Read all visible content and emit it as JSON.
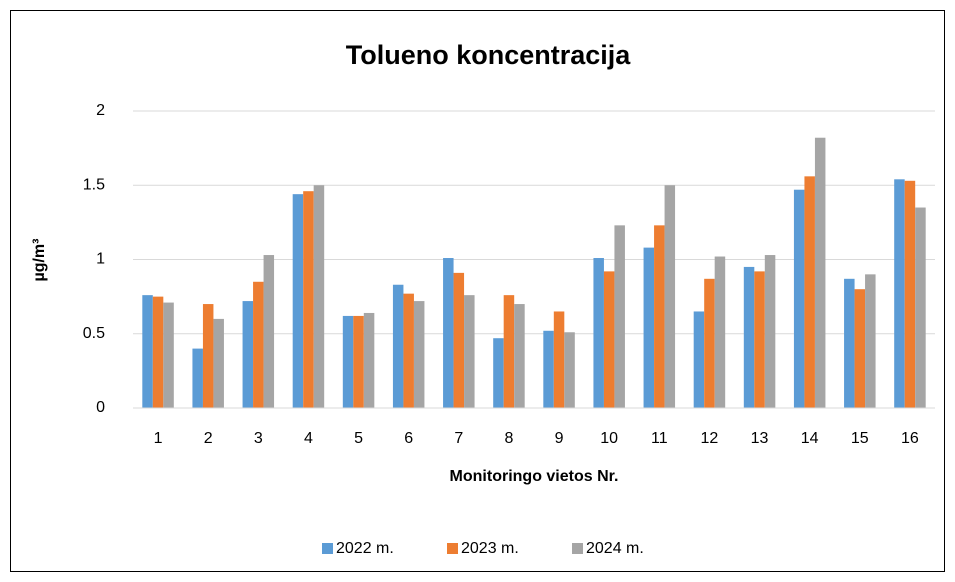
{
  "chart_data": {
    "type": "bar",
    "title": "Tolueno koncentracija",
    "x_label": "Monitoringo vietos Nr.",
    "y_label": "µg/m³",
    "categories": [
      "1",
      "2",
      "3",
      "4",
      "5",
      "6",
      "7",
      "8",
      "9",
      "10",
      "11",
      "12",
      "13",
      "14",
      "15",
      "16"
    ],
    "series": [
      {
        "name": "2022 m.",
        "color": "#5b9bd5",
        "values": [
          0.76,
          0.4,
          0.72,
          1.44,
          0.62,
          0.83,
          1.01,
          0.47,
          0.52,
          1.01,
          1.08,
          0.65,
          0.95,
          1.47,
          0.87,
          1.54
        ]
      },
      {
        "name": "2023 m.",
        "color": "#ed7d31",
        "values": [
          0.75,
          0.7,
          0.85,
          1.46,
          0.62,
          0.77,
          0.91,
          0.76,
          0.65,
          0.92,
          1.23,
          0.87,
          0.92,
          1.56,
          0.8,
          1.53
        ]
      },
      {
        "name": "2024 m.",
        "color": "#a5a5a5",
        "values": [
          0.71,
          0.6,
          1.03,
          1.5,
          0.64,
          0.72,
          0.76,
          0.7,
          0.51,
          1.23,
          1.5,
          1.02,
          1.03,
          1.82,
          0.9,
          1.35
        ]
      }
    ],
    "ylim": [
      0,
      2
    ],
    "yticks": [
      0,
      0.5,
      1,
      1.5,
      2
    ],
    "grid": true,
    "legend": "bottom"
  }
}
